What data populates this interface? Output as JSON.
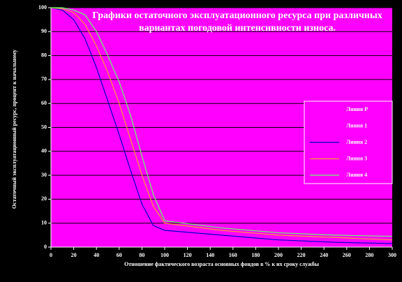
{
  "chart_data": {
    "type": "line",
    "title": "Графики остаточного эксплуатационного ресурса при различных вариантах погодовой интенсивности износа.",
    "x_label": "Отношение фактического возраста основных фондов в % к их сроку службы",
    "y_label": "Остаточный эксплуатационный ресурс, процент к начальному",
    "x": [
      0,
      10,
      20,
      30,
      40,
      50,
      60,
      70,
      80,
      90,
      100,
      150,
      200,
      250,
      300
    ],
    "series": [
      {
        "name": "Линия Р",
        "color": "#ff00ff",
        "values": [
          null,
          null,
          null,
          null,
          null,
          null,
          null,
          null,
          null,
          null,
          null,
          null,
          null,
          null,
          null
        ]
      },
      {
        "name": "Линия 1",
        "color": "#ff00ff",
        "values": [
          null,
          null,
          null,
          null,
          null,
          null,
          null,
          null,
          null,
          null,
          null,
          null,
          null,
          null,
          null
        ]
      },
      {
        "name": "Линия 2",
        "color": "#0000cc",
        "values": [
          100,
          99,
          95,
          87,
          75,
          61,
          47,
          32,
          18,
          9,
          7,
          5,
          3,
          2,
          1.5
        ]
      },
      {
        "name": "Линия 3",
        "color": "#ff9933",
        "values": [
          100,
          99.5,
          98,
          93,
          84,
          73,
          60,
          45,
          30,
          17,
          10,
          7,
          5,
          4,
          3
        ]
      },
      {
        "name": "Линия 4",
        "color": "#66ff66",
        "values": [
          100,
          100,
          99,
          97,
          90,
          80,
          69,
          55,
          38,
          22,
          11,
          8,
          6,
          5,
          4.5
        ]
      }
    ],
    "xlim": [
      0,
      300
    ],
    "xticks": [
      0,
      20,
      40,
      60,
      80,
      100,
      120,
      140,
      160,
      180,
      200,
      220,
      240,
      260,
      280,
      300
    ],
    "ylim": [
      0,
      100
    ],
    "yticks": [
      0,
      10,
      20,
      30,
      40,
      50,
      60,
      70,
      80,
      90,
      100
    ],
    "grid": true,
    "legend": "right"
  }
}
